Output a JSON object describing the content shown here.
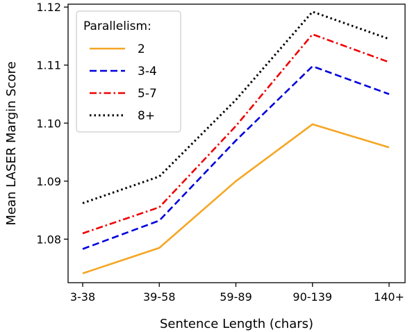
{
  "chart_data": {
    "type": "line",
    "categories": [
      "3-38",
      "39-58",
      "59-89",
      "90-139",
      "140+"
    ],
    "xlabel": "Sentence Length (chars)",
    "ylabel": "Mean LASER Margin Score",
    "ylim": [
      1.0725,
      1.1205
    ],
    "yticks": [
      1.08,
      1.09,
      1.1,
      1.11,
      1.12
    ],
    "ytick_labels": [
      "1.08",
      "1.09",
      "1.10",
      "1.11",
      "1.12"
    ],
    "grid": false,
    "legend": {
      "title": "Parallelism:",
      "placement": "top-left"
    },
    "series": [
      {
        "name": "2",
        "values": [
          1.0741,
          1.0785,
          1.09,
          1.0998,
          1.0958
        ],
        "color": "#f5a623",
        "style": "solid"
      },
      {
        "name": "3-4",
        "values": [
          1.0783,
          1.0832,
          1.097,
          1.1098,
          1.105
        ],
        "color": "#0000dd",
        "style": "dashed"
      },
      {
        "name": "5-7",
        "values": [
          1.081,
          1.0855,
          1.0995,
          1.1153,
          1.1105
        ],
        "color": "#ee0000",
        "style": "dashdot"
      },
      {
        "name": "8+",
        "values": [
          1.0862,
          1.0908,
          1.104,
          1.1192,
          1.1145
        ],
        "color": "#000000",
        "style": "dotted"
      }
    ]
  }
}
